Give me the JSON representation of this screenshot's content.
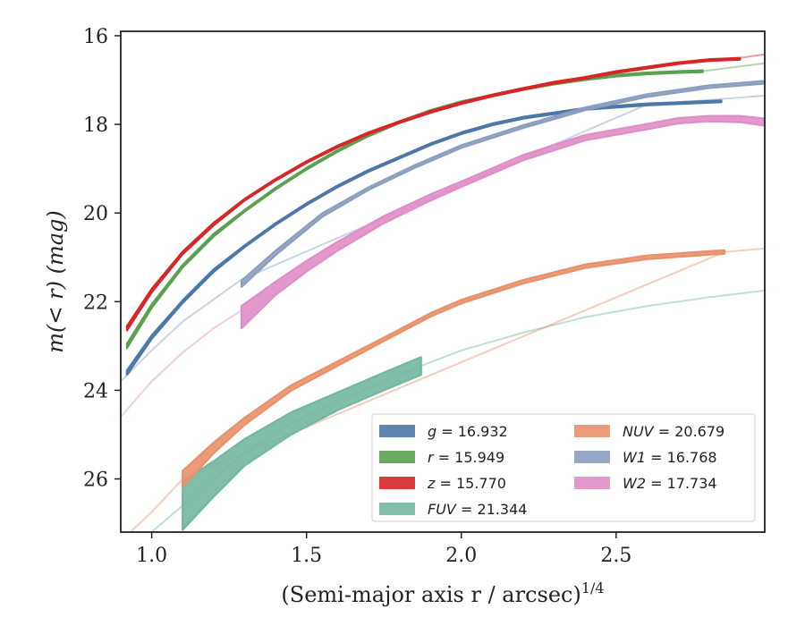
{
  "chart_data": {
    "type": "line",
    "xlabel": "(Semi-major axis r / arcsec)",
    "xlabel_exponent": "1/4",
    "ylabel": "m(< r) (mag)",
    "xlim": [
      0.9,
      2.98
    ],
    "ylim": [
      27.2,
      15.9
    ],
    "y_inverted": true,
    "xticks": [
      1.0,
      1.5,
      2.0,
      2.5
    ],
    "xtick_labels": [
      "1.0",
      "1.5",
      "2.0",
      "2.5"
    ],
    "yticks": [
      16,
      18,
      20,
      22,
      24,
      26
    ],
    "ytick_labels": [
      "16",
      "18",
      "20",
      "22",
      "24",
      "26"
    ],
    "grid": false,
    "legend_position": "lower-right",
    "series": [
      {
        "key": "g",
        "name": "g = 16.932",
        "color": "#4c78a8",
        "measured_x": [
          0.92,
          1.0,
          1.1,
          1.2,
          1.3,
          1.4,
          1.5,
          1.6,
          1.7,
          1.8,
          1.9,
          2.0,
          2.1,
          2.2,
          2.3,
          2.4,
          2.5,
          2.6,
          2.7,
          2.84
        ],
        "measured_y": [
          23.6,
          22.8,
          22.0,
          21.3,
          20.75,
          20.25,
          19.8,
          19.4,
          19.05,
          18.75,
          18.45,
          18.2,
          18.0,
          17.85,
          17.75,
          17.65,
          17.6,
          17.55,
          17.52,
          17.48
        ],
        "measured_err": [
          0.05,
          0.04,
          0.03,
          0.03,
          0.02,
          0.02,
          0.02,
          0.02,
          0.02,
          0.02,
          0.02,
          0.02,
          0.02,
          0.02,
          0.02,
          0.02,
          0.02,
          0.02,
          0.02,
          0.02
        ],
        "model_x": [],
        "model_y": []
      },
      {
        "key": "r",
        "name": "r = 15.949",
        "color": "#59a14f",
        "measured_x": [
          0.92,
          1.0,
          1.1,
          1.2,
          1.3,
          1.4,
          1.5,
          1.6,
          1.7,
          1.8,
          1.9,
          2.0,
          2.1,
          2.2,
          2.3,
          2.4,
          2.5,
          2.6,
          2.7,
          2.78
        ],
        "measured_y": [
          23.0,
          22.1,
          21.2,
          20.5,
          19.95,
          19.45,
          19.0,
          18.6,
          18.25,
          17.95,
          17.7,
          17.5,
          17.35,
          17.2,
          17.08,
          16.98,
          16.9,
          16.85,
          16.82,
          16.8
        ],
        "measured_err": [
          0.05,
          0.04,
          0.03,
          0.03,
          0.02,
          0.02,
          0.02,
          0.02,
          0.02,
          0.02,
          0.02,
          0.02,
          0.02,
          0.02,
          0.02,
          0.02,
          0.02,
          0.02,
          0.02,
          0.02
        ],
        "model_x": [
          2.78,
          2.98
        ],
        "model_y": [
          16.8,
          16.62
        ]
      },
      {
        "key": "z",
        "name": "z = 15.770",
        "color": "#d62728",
        "measured_x": [
          0.92,
          1.0,
          1.1,
          1.2,
          1.3,
          1.4,
          1.5,
          1.6,
          1.7,
          1.8,
          1.9,
          2.0,
          2.1,
          2.2,
          2.3,
          2.4,
          2.5,
          2.6,
          2.7,
          2.8,
          2.9
        ],
        "measured_y": [
          22.6,
          21.75,
          20.9,
          20.25,
          19.7,
          19.25,
          18.85,
          18.5,
          18.2,
          17.95,
          17.72,
          17.52,
          17.35,
          17.2,
          17.06,
          16.95,
          16.82,
          16.72,
          16.62,
          16.55,
          16.52
        ],
        "measured_err": [
          0.05,
          0.04,
          0.03,
          0.03,
          0.02,
          0.02,
          0.02,
          0.02,
          0.02,
          0.02,
          0.02,
          0.02,
          0.02,
          0.02,
          0.02,
          0.02,
          0.02,
          0.02,
          0.02,
          0.02,
          0.02
        ],
        "model_x": [
          2.9,
          2.98
        ],
        "model_y": [
          16.5,
          16.42
        ]
      },
      {
        "key": "FUV",
        "name": "FUV = 21.344",
        "color": "#72b7a1",
        "measured_x": [
          1.1,
          1.2,
          1.3,
          1.45,
          1.6,
          1.75,
          1.87
        ],
        "measured_y": [
          26.6,
          26.0,
          25.4,
          24.75,
          24.25,
          23.8,
          23.45
        ],
        "measured_err": [
          0.55,
          0.4,
          0.3,
          0.25,
          0.2,
          0.2,
          0.2
        ],
        "model_x": [
          0.9,
          1.0,
          1.1,
          1.2,
          1.3,
          1.45,
          1.6,
          1.75,
          1.87,
          2.0,
          2.2,
          2.4,
          2.6,
          2.8,
          2.98
        ],
        "model_y": [
          27.3,
          27.2,
          26.6,
          26.0,
          25.4,
          24.75,
          24.25,
          23.8,
          23.45,
          23.1,
          22.7,
          22.35,
          22.1,
          21.9,
          21.75
        ]
      },
      {
        "key": "NUV",
        "name": "NUV = 20.679",
        "color": "#e8916b",
        "measured_x": [
          1.1,
          1.2,
          1.3,
          1.45,
          1.6,
          1.75,
          1.9,
          2.0,
          2.2,
          2.4,
          2.6,
          2.8,
          2.85
        ],
        "measured_y": [
          26.0,
          25.3,
          24.7,
          23.95,
          23.4,
          22.85,
          22.3,
          22.0,
          21.55,
          21.2,
          21.0,
          20.9,
          20.88
        ],
        "measured_err": [
          0.18,
          0.12,
          0.08,
          0.06,
          0.05,
          0.04,
          0.04,
          0.04,
          0.04,
          0.04,
          0.04,
          0.04,
          0.04
        ],
        "model_x": [
          0.9,
          1.0,
          1.1,
          2.85,
          2.98
        ],
        "model_y": [
          27.4,
          26.75,
          26.0,
          20.88,
          20.8
        ]
      },
      {
        "key": "W1",
        "name": "W1 = 16.768",
        "color": "#8c9ec0",
        "measured_x": [
          1.29,
          1.4,
          1.55,
          1.7,
          1.85,
          2.0,
          2.2,
          2.4,
          2.6,
          2.8,
          2.98
        ],
        "measured_y": [
          21.6,
          20.9,
          20.05,
          19.45,
          18.95,
          18.5,
          18.05,
          17.65,
          17.35,
          17.15,
          17.05
        ],
        "measured_err": [
          0.07,
          0.05,
          0.04,
          0.03,
          0.03,
          0.03,
          0.03,
          0.03,
          0.03,
          0.03,
          0.03
        ],
        "model_x": [
          0.9,
          1.0,
          1.1,
          1.2,
          1.29,
          2.6,
          2.8,
          2.98
        ],
        "model_y": [
          23.8,
          23.1,
          22.45,
          21.95,
          21.5,
          17.55,
          17.45,
          17.35
        ]
      },
      {
        "key": "W2",
        "name": "W2 = 17.734",
        "color": "#e08ec6",
        "measured_x": [
          1.29,
          1.4,
          1.5,
          1.6,
          1.75,
          1.9,
          2.0,
          2.2,
          2.4,
          2.6,
          2.7,
          2.8,
          2.9,
          2.98
        ],
        "measured_y": [
          22.35,
          21.7,
          21.2,
          20.75,
          20.15,
          19.65,
          19.35,
          18.75,
          18.3,
          18.05,
          17.92,
          17.87,
          17.88,
          17.95
        ],
        "measured_err": [
          0.25,
          0.15,
          0.12,
          0.1,
          0.08,
          0.07,
          0.06,
          0.06,
          0.06,
          0.06,
          0.06,
          0.06,
          0.07,
          0.08
        ],
        "model_x": [
          0.9,
          1.0,
          1.1,
          1.2,
          1.29
        ],
        "model_y": [
          24.6,
          23.8,
          23.15,
          22.6,
          22.2
        ]
      }
    ],
    "legend": [
      {
        "label_var": "g",
        "label_value": "= 16.932",
        "color": "#4c78a8",
        "col": 0,
        "row": 0
      },
      {
        "label_var": "r",
        "label_value": "= 15.949",
        "color": "#59a14f",
        "col": 0,
        "row": 1
      },
      {
        "label_var": "z",
        "label_value": "= 15.770",
        "color": "#d62728",
        "col": 0,
        "row": 2
      },
      {
        "label_var": "FUV",
        "label_value": "= 21.344",
        "color": "#72b7a1",
        "col": 0,
        "row": 3
      },
      {
        "label_var": "NUV",
        "label_value": "= 20.679",
        "color": "#e8916b",
        "col": 1,
        "row": 0
      },
      {
        "label_var": "W1",
        "label_value": "= 16.768",
        "color": "#8c9ec0",
        "col": 1,
        "row": 1
      },
      {
        "label_var": "W2",
        "label_value": "= 17.734",
        "color": "#e08ec6",
        "col": 1,
        "row": 2
      }
    ]
  }
}
